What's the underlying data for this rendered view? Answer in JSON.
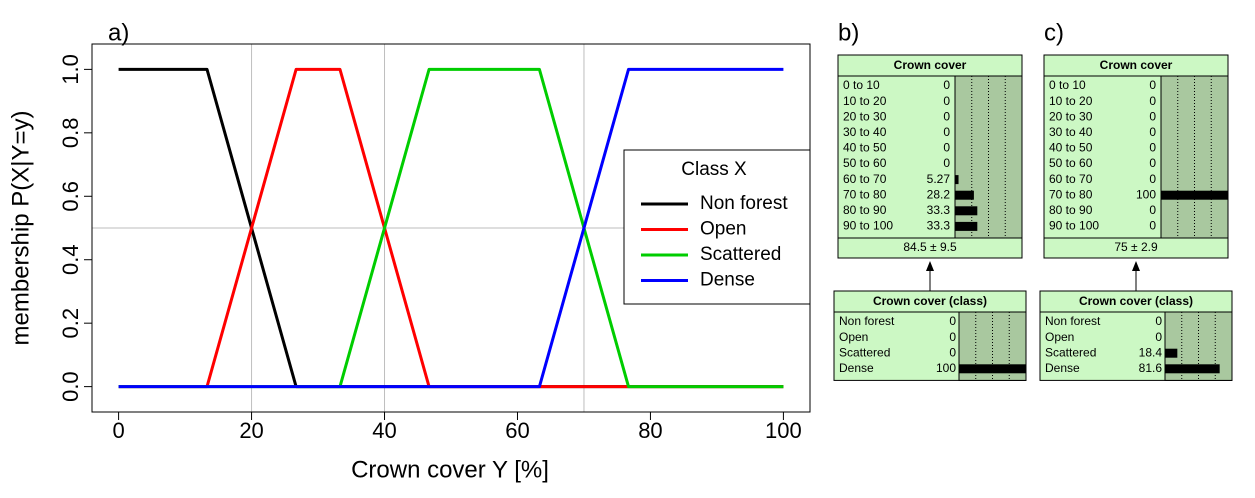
{
  "chart_data": {
    "type": "line",
    "label": "a)",
    "x_label": "Crown cover Y [%]",
    "y_label": "membership P(X|Y=y)",
    "x": [
      0,
      13.3,
      26.7,
      33.3,
      46.7,
      63.3,
      76.7,
      100
    ],
    "series": [
      {
        "name": "Non forest",
        "color": "#000000",
        "values": [
          1,
          1,
          0,
          0,
          0,
          0,
          0,
          0
        ]
      },
      {
        "name": "Open",
        "color": "#ff0000",
        "values": [
          0,
          0,
          1,
          1,
          0,
          0,
          0,
          0
        ]
      },
      {
        "name": "Scattered",
        "color": "#00cd00",
        "values": [
          0,
          0,
          0,
          0,
          1,
          1,
          0,
          0
        ]
      },
      {
        "name": "Dense",
        "color": "#0000ff",
        "values": [
          0,
          0,
          0,
          0,
          0,
          0,
          1,
          1
        ]
      }
    ],
    "xlim": [
      -4,
      104
    ],
    "ylim": [
      -0.08,
      1.08
    ],
    "xticks": [
      0,
      20,
      40,
      60,
      80,
      100
    ],
    "yticks": [
      {
        "value": 0,
        "label": "0.0"
      },
      0.2,
      0.4,
      0.6,
      0.8,
      {
        "value": 1,
        "label": "1.0"
      }
    ],
    "reference_lines": {
      "x": [
        20,
        40,
        70
      ],
      "y": [
        0.5
      ]
    },
    "legend": {
      "title": "Class X",
      "position": "right"
    }
  },
  "panels": [
    {
      "label": "b)",
      "nodes": [
        {
          "title": "Crown cover",
          "states": [
            "0 to 10",
            "10 to 20",
            "20 to 30",
            "30 to 40",
            "40 to 50",
            "50 to 60",
            "60 to 70",
            "70 to 80",
            "80 to 90",
            "90 to 100"
          ],
          "values": [
            0,
            0,
            0,
            0,
            0,
            0,
            5.27,
            28.2,
            33.3,
            33.3
          ],
          "summary": "84.5 ± 9.5"
        },
        {
          "title": "Crown cover (class)",
          "states": [
            "Non forest",
            "Open",
            "Scattered",
            "Dense"
          ],
          "values": [
            0,
            0,
            0,
            100
          ]
        }
      ]
    },
    {
      "label": "c)",
      "nodes": [
        {
          "title": "Crown cover",
          "states": [
            "0 to 10",
            "10 to 20",
            "20 to 30",
            "30 to 40",
            "40 to 50",
            "50 to 60",
            "60 to 70",
            "70 to 80",
            "80 to 90",
            "90 to 100"
          ],
          "values": [
            0,
            0,
            0,
            0,
            0,
            0,
            0,
            100,
            0,
            0
          ],
          "summary": "75 ± 2.9"
        },
        {
          "title": "Crown cover (class)",
          "states": [
            "Non forest",
            "Open",
            "Scattered",
            "Dense"
          ],
          "values": [
            0,
            0,
            18.4,
            81.6
          ]
        }
      ]
    }
  ]
}
